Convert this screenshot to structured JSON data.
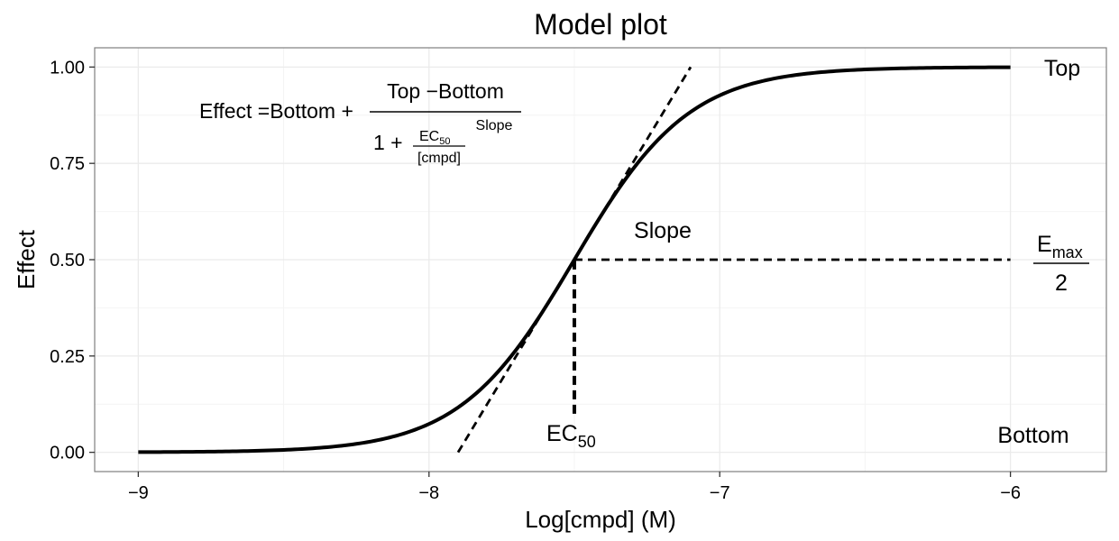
{
  "chart_data": {
    "type": "line",
    "title": "Model plot",
    "xlabel": "Log[cmpd] (M)",
    "ylabel": "Effect",
    "xlim": [
      -9.15,
      -5.67
    ],
    "ylim": [
      -0.05,
      1.05
    ],
    "x_ticks": [
      -9,
      -8,
      -7,
      -6
    ],
    "x_tick_labels": [
      "−9",
      "−8",
      "−7",
      "−6"
    ],
    "y_ticks": [
      0,
      0.25,
      0.5,
      0.75,
      1.0
    ],
    "y_tick_labels": [
      "0.00",
      "0.25",
      "0.50",
      "0.75",
      "1.00"
    ],
    "grid": true,
    "model": {
      "bottom": 0,
      "top": 1,
      "log_ec50": -7.5,
      "hill_slope": 2.2,
      "x_range": [
        -9,
        -6
      ]
    },
    "tangent_line": {
      "x": [
        -7.9,
        -7.1
      ],
      "y": [
        0,
        1
      ]
    },
    "ec50_drop_line": {
      "x": [
        -7.5,
        -7.5
      ],
      "y": [
        0.1,
        0.5
      ]
    },
    "half_max_line": {
      "x": [
        -7.5,
        -6.0
      ],
      "y": [
        0.5,
        0.5
      ]
    },
    "annotations": {
      "top": "Top",
      "bottom": "Bottom",
      "slope": "Slope",
      "ec50_main": "EC",
      "ec50_sub": "50",
      "emax_main": "E",
      "emax_sub": "max",
      "emax_den": "2"
    },
    "formula": {
      "lhs": "Effect =Bottom +",
      "numerator": "Top −Bottom",
      "exponent": "Slope",
      "den_prefix": "1 +",
      "inner_num_main": "EC",
      "inner_num_sub": "50",
      "inner_den": "[cmpd]"
    }
  }
}
